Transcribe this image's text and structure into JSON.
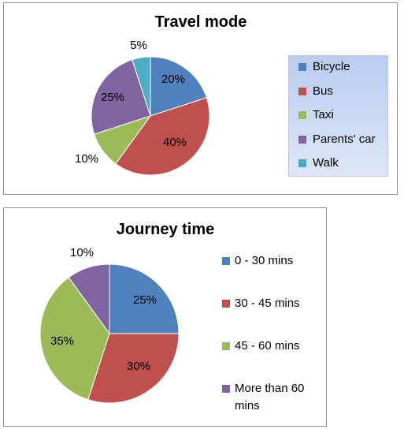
{
  "chart_data": [
    {
      "type": "pie",
      "title": "Travel mode",
      "categories": [
        "Bicycle",
        "Bus",
        "Taxi",
        "Parents' car",
        "Walk"
      ],
      "values": [
        20,
        40,
        10,
        25,
        5
      ],
      "labels": [
        "20%",
        "40%",
        "10%",
        "25%",
        "5%"
      ],
      "colors": [
        "#4f81bd",
        "#c0504d",
        "#9bbb59",
        "#8064a2",
        "#4bacc6"
      ],
      "legend": "right"
    },
    {
      "type": "pie",
      "title": "Journey time",
      "categories": [
        "0 - 30 mins",
        "30 - 45 mins",
        "45 - 60 mins",
        "More than 60 mins"
      ],
      "values": [
        25,
        30,
        35,
        10
      ],
      "labels": [
        "25%",
        "30%",
        "35%",
        "10%"
      ],
      "colors": [
        "#4f81bd",
        "#c0504d",
        "#9bbb59",
        "#8064a2"
      ],
      "legend": "right"
    }
  ]
}
